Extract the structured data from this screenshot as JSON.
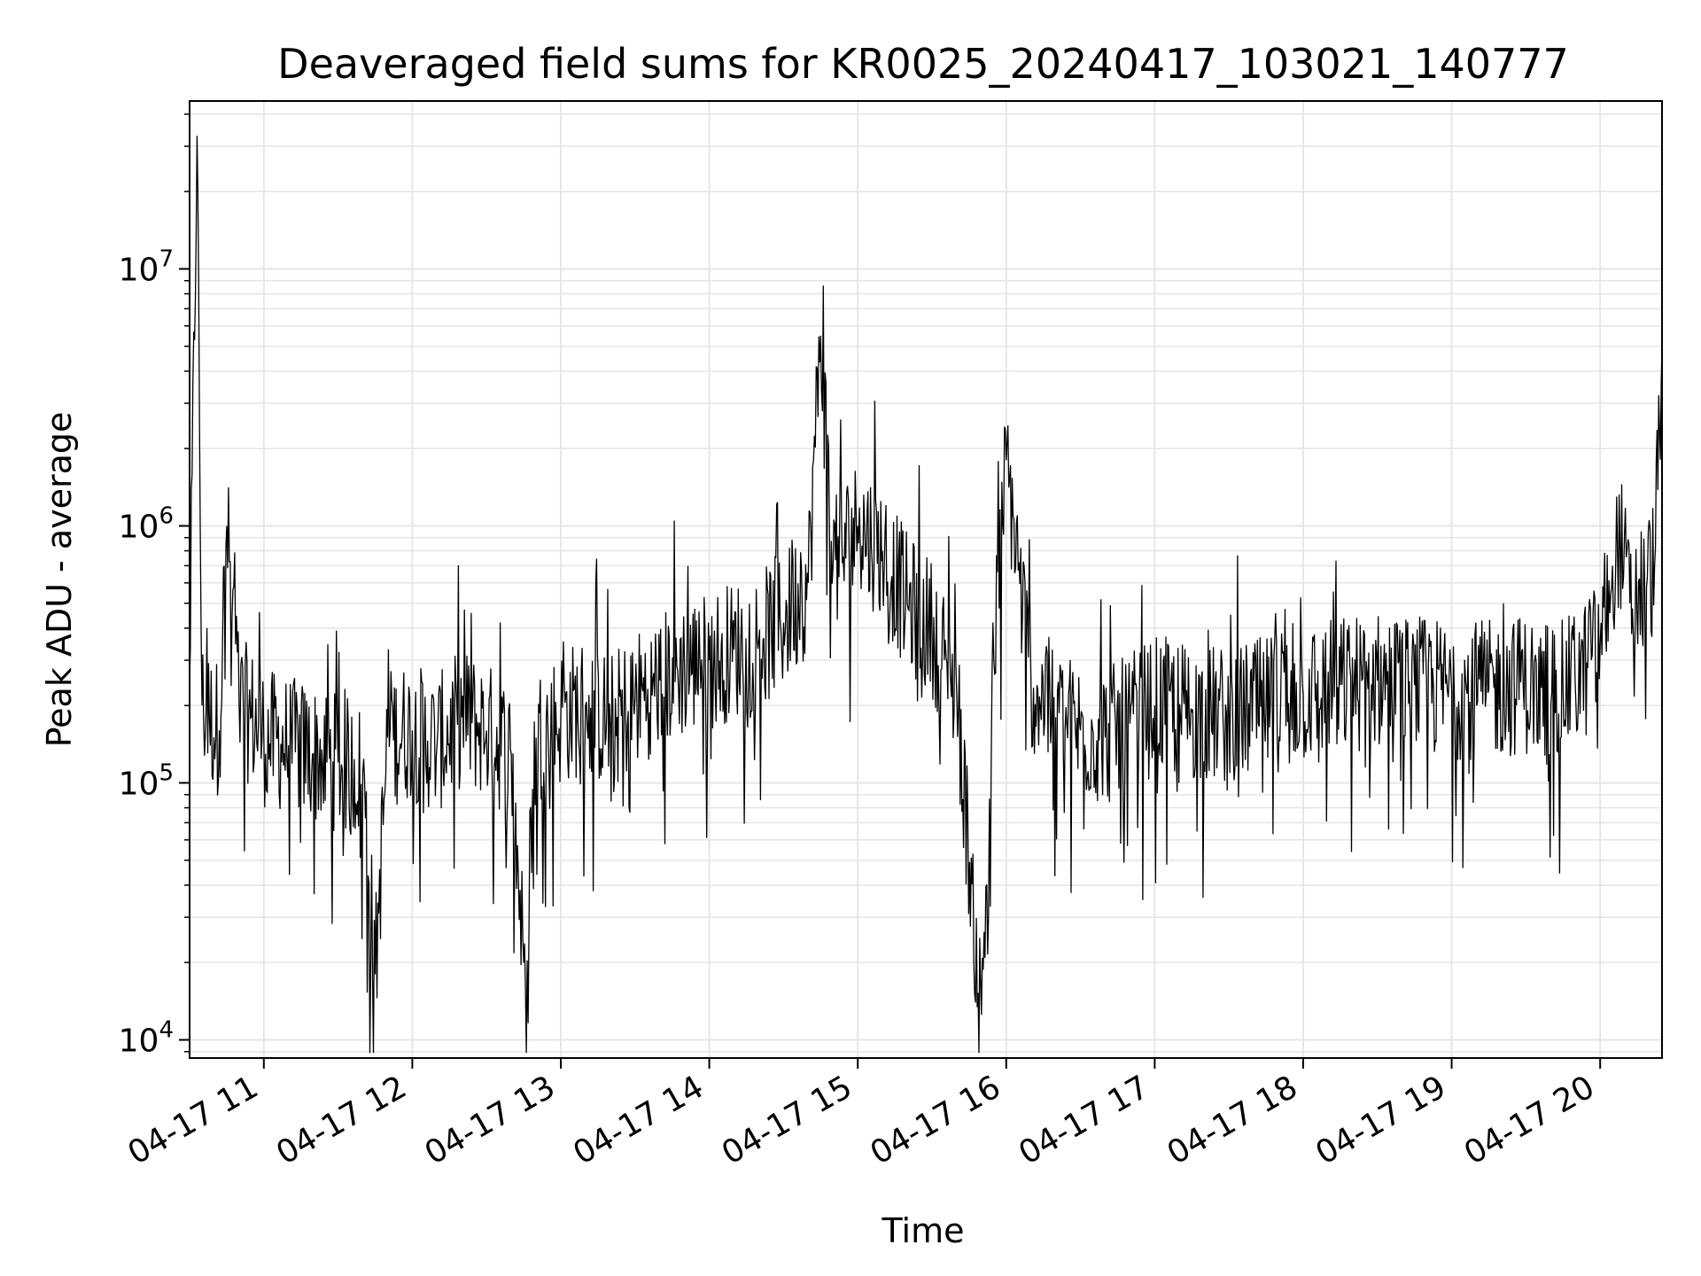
{
  "chart_data": {
    "type": "line",
    "title": "Deaveraged field sums for KR0025_20240417_103021_140777",
    "xlabel": "Time",
    "ylabel": "Peak ADU - average",
    "yscale": "log",
    "ylim": [
      8500,
      45000000
    ],
    "xlim": [
      "2024-04-17 10:30",
      "2024-04-17 20:25"
    ],
    "grid": true,
    "line_color": "#000000",
    "x_ticks": [
      "04-17 11",
      "04-17 12",
      "04-17 13",
      "04-17 14",
      "04-17 15",
      "04-17 16",
      "04-17 17",
      "04-17 18",
      "04-17 19",
      "04-17 20"
    ],
    "y_ticks": [
      {
        "value": 10000,
        "base": "10",
        "exponent": "4"
      },
      {
        "value": 100000,
        "base": "10",
        "exponent": "5"
      },
      {
        "value": 1000000,
        "base": "10",
        "exponent": "6"
      },
      {
        "value": 10000000,
        "base": "10",
        "exponent": "7"
      }
    ],
    "series": [
      {
        "x": [
          "2024-04-17 10:30",
          "2024-04-17 10:33",
          "2024-04-17 10:35",
          "2024-04-17 10:38",
          "2024-04-17 10:42",
          "2024-04-17 10:45",
          "2024-04-17 10:50",
          "2024-04-17 10:55",
          "2024-04-17 11:00",
          "2024-04-17 11:10",
          "2024-04-17 11:20",
          "2024-04-17 11:30",
          "2024-04-17 11:40",
          "2024-04-17 11:45",
          "2024-04-17 11:50",
          "2024-04-17 12:00",
          "2024-04-17 12:10",
          "2024-04-17 12:20",
          "2024-04-17 12:30",
          "2024-04-17 12:40",
          "2024-04-17 12:45",
          "2024-04-17 12:50",
          "2024-04-17 13:00",
          "2024-04-17 13:10",
          "2024-04-17 13:20",
          "2024-04-17 13:30",
          "2024-04-17 13:40",
          "2024-04-17 13:50",
          "2024-04-17 14:00",
          "2024-04-17 14:10",
          "2024-04-17 14:20",
          "2024-04-17 14:30",
          "2024-04-17 14:40",
          "2024-04-17 14:45",
          "2024-04-17 14:50",
          "2024-04-17 15:00",
          "2024-04-17 15:10",
          "2024-04-17 15:20",
          "2024-04-17 15:30",
          "2024-04-17 15:35",
          "2024-04-17 15:40",
          "2024-04-17 15:50",
          "2024-04-17 15:55",
          "2024-04-17 16:00",
          "2024-04-17 16:10",
          "2024-04-17 16:20",
          "2024-04-17 16:30",
          "2024-04-17 16:40",
          "2024-04-17 16:50",
          "2024-04-17 17:00",
          "2024-04-17 17:15",
          "2024-04-17 17:30",
          "2024-04-17 17:45",
          "2024-04-17 18:00",
          "2024-04-17 18:15",
          "2024-04-17 18:30",
          "2024-04-17 18:45",
          "2024-04-17 19:00",
          "2024-04-17 19:15",
          "2024-04-17 19:30",
          "2024-04-17 19:45",
          "2024-04-17 19:55",
          "2024-04-17 20:00",
          "2024-04-17 20:05",
          "2024-04-17 20:08",
          "2024-04-17 20:12",
          "2024-04-17 20:18",
          "2024-04-17 20:22",
          "2024-04-17 20:25"
        ],
        "values": [
          250000,
          33000000,
          200000,
          180000,
          160000,
          1000000,
          200000,
          180000,
          150000,
          140000,
          130000,
          120000,
          110000,
          18000,
          150000,
          160000,
          140000,
          180000,
          160000,
          130000,
          20000,
          150000,
          180000,
          200000,
          170000,
          210000,
          250000,
          280000,
          300000,
          330000,
          360000,
          420000,
          600000,
          5500000,
          700000,
          1000000,
          800000,
          500000,
          400000,
          300000,
          220000,
          12500,
          300000,
          1800000,
          250000,
          180000,
          160000,
          150000,
          170000,
          200000,
          190000,
          180000,
          200000,
          220000,
          240000,
          250000,
          240000,
          230000,
          230000,
          240000,
          230000,
          280000,
          350000,
          700000,
          900000,
          500000,
          600000,
          700000,
          5000000
        ]
      }
    ]
  }
}
